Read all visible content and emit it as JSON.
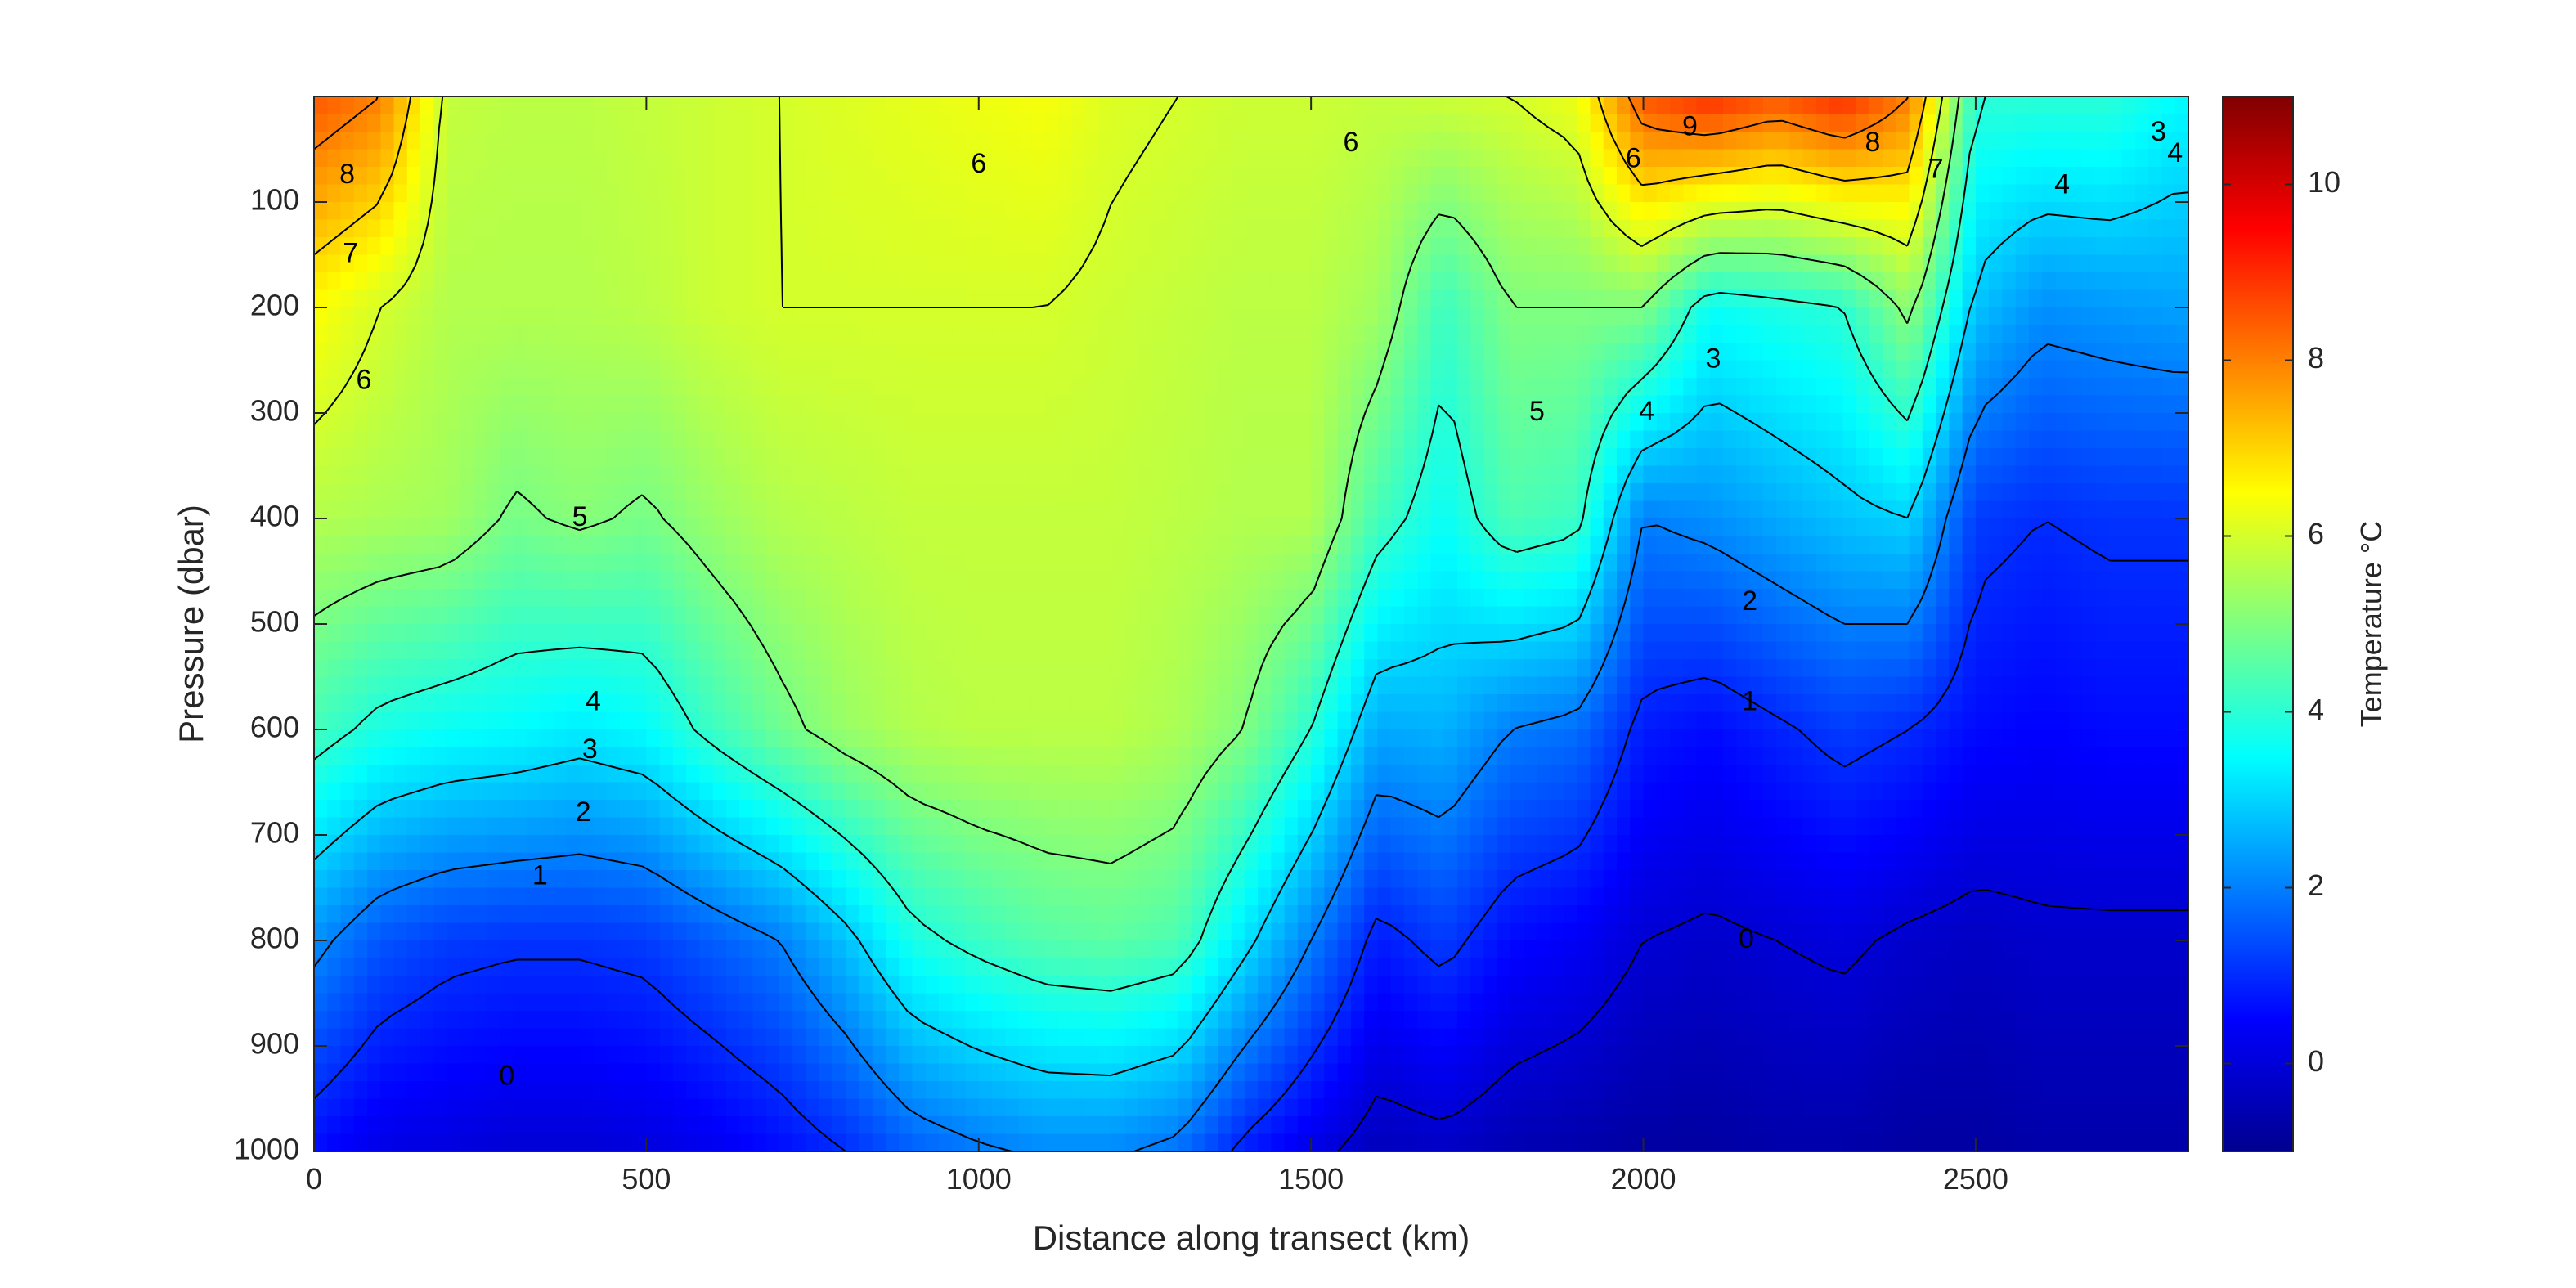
{
  "chart_data": {
    "type": "heatmap",
    "title": "",
    "xlabel": "Distance along transect (km)",
    "ylabel": "Pressure (dbar)",
    "colorbar_label": "Temperature °C",
    "xlim": [
      0,
      2820
    ],
    "ylim": [
      1000,
      0
    ],
    "clim": [
      -1,
      11
    ],
    "grid": false,
    "x_ticks": [
      0,
      500,
      1000,
      1500,
      2000,
      2500
    ],
    "y_ticks": [
      100,
      200,
      300,
      400,
      500,
      600,
      700,
      800,
      900,
      1000
    ],
    "colorbar_ticks": [
      0,
      2,
      4,
      6,
      8,
      10
    ],
    "colormap": "jet",
    "contour_levels": [
      0,
      1,
      2,
      3,
      4,
      5,
      6,
      7,
      8,
      9
    ],
    "depth_levels": [
      0,
      200,
      400,
      600,
      800,
      1000
    ],
    "distance_km": [
      0,
      100,
      200,
      300,
      400,
      500,
      600,
      700,
      800,
      900,
      1000,
      1100,
      1200,
      1300,
      1400,
      1500,
      1600,
      1700,
      1800,
      1900,
      2000,
      2100,
      2200,
      2300,
      2400,
      2500,
      2600,
      2700,
      2800
    ],
    "temperature": [
      [
        8.5,
        8.0,
        5.8,
        5.7,
        5.7,
        5.8,
        5.9,
        6.0,
        6.1,
        6.2,
        6.3,
        6.4,
        6.1,
        6.0,
        5.9,
        5.9,
        5.8,
        5.9,
        6.0,
        6.3,
        8.5,
        9.0,
        8.5,
        9.0,
        8.0,
        4.0,
        4.0,
        4.0,
        3.5
      ],
      [
        6.5,
        6.0,
        5.6,
        5.6,
        5.6,
        5.7,
        5.9,
        6.0,
        6.0,
        6.0,
        6.0,
        6.0,
        5.9,
        5.8,
        5.7,
        5.7,
        5.4,
        4.2,
        5.0,
        5.0,
        5.0,
        3.6,
        3.8,
        4.0,
        5.2,
        2.8,
        2.2,
        2.3,
        2.4
      ],
      [
        5.6,
        5.5,
        5.4,
        4.9,
        5.1,
        4.9,
        5.3,
        5.6,
        5.7,
        5.8,
        5.8,
        5.8,
        5.8,
        5.7,
        5.6,
        5.6,
        4.3,
        3.6,
        4.4,
        4.2,
        2.0,
        2.2,
        2.5,
        2.8,
        3.0,
        1.2,
        1.0,
        1.1,
        1.1
      ],
      [
        4.3,
        3.8,
        3.6,
        3.5,
        3.3,
        3.5,
        4.2,
        4.8,
        5.3,
        5.6,
        5.7,
        5.7,
        5.7,
        5.5,
        5.0,
        4.0,
        2.5,
        2.6,
        2.0,
        1.8,
        0.8,
        0.6,
        0.9,
        1.2,
        1.0,
        0.6,
        0.5,
        0.6,
        0.6
      ],
      [
        2.2,
        1.5,
        1.2,
        1.1,
        1.1,
        1.2,
        1.6,
        2.0,
        2.8,
        3.8,
        4.2,
        4.5,
        4.6,
        4.4,
        3.2,
        2.0,
        0.8,
        1.2,
        0.6,
        0.4,
        0.0,
        -0.1,
        0.0,
        0.1,
        -0.1,
        -0.2,
        -0.1,
        -0.1,
        -0.1
      ],
      [
        0.6,
        0.2,
        0.1,
        0.0,
        0.0,
        0.1,
        0.3,
        0.6,
        1.0,
        1.6,
        1.9,
        2.1,
        2.1,
        1.8,
        0.8,
        0.2,
        -0.3,
        -0.2,
        -0.4,
        -0.5,
        -0.6,
        -0.6,
        -0.5,
        -0.5,
        -0.6,
        -0.6,
        -0.5,
        -0.5,
        -0.5
      ]
    ],
    "contour_labels": [
      {
        "text": "8",
        "x": 50,
        "y": 75
      },
      {
        "text": "7",
        "x": 55,
        "y": 150
      },
      {
        "text": "6",
        "x": 75,
        "y": 270
      },
      {
        "text": "6",
        "x": 1000,
        "y": 65
      },
      {
        "text": "6",
        "x": 1560,
        "y": 45
      },
      {
        "text": "6",
        "x": 1985,
        "y": 60
      },
      {
        "text": "9",
        "x": 2070,
        "y": 30
      },
      {
        "text": "8",
        "x": 2345,
        "y": 45
      },
      {
        "text": "7",
        "x": 2440,
        "y": 70
      },
      {
        "text": "5",
        "x": 400,
        "y": 400
      },
      {
        "text": "5",
        "x": 1840,
        "y": 300
      },
      {
        "text": "4",
        "x": 420,
        "y": 575
      },
      {
        "text": "3",
        "x": 415,
        "y": 620
      },
      {
        "text": "2",
        "x": 405,
        "y": 680
      },
      {
        "text": "1",
        "x": 340,
        "y": 740
      },
      {
        "text": "0",
        "x": 290,
        "y": 930
      },
      {
        "text": "4",
        "x": 2005,
        "y": 300
      },
      {
        "text": "3",
        "x": 2105,
        "y": 250
      },
      {
        "text": "4",
        "x": 2630,
        "y": 85
      },
      {
        "text": "3",
        "x": 2775,
        "y": 35
      },
      {
        "text": "4",
        "x": 2800,
        "y": 55
      },
      {
        "text": "2",
        "x": 2160,
        "y": 480
      },
      {
        "text": "1",
        "x": 2160,
        "y": 575
      },
      {
        "text": "0",
        "x": 2155,
        "y": 800
      }
    ]
  }
}
